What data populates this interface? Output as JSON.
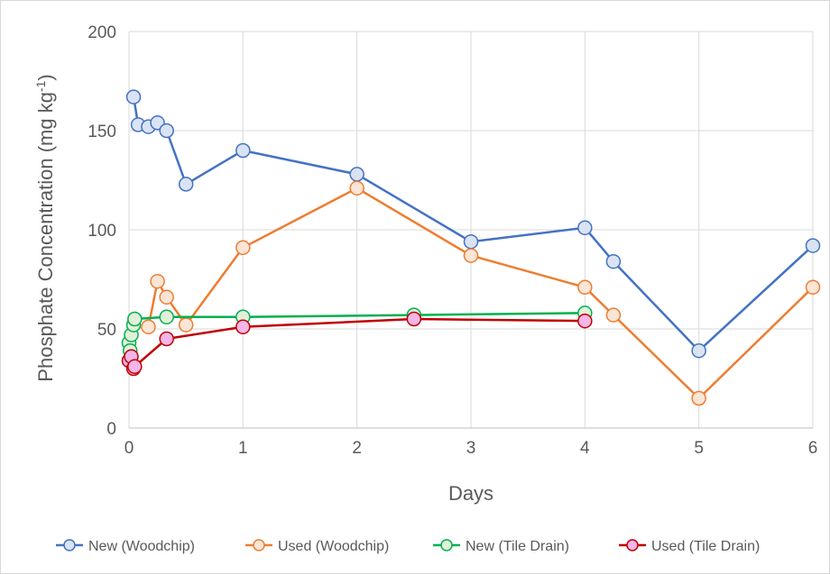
{
  "chart_data": {
    "type": "line",
    "title": "",
    "xlabel": "Days",
    "ylabel": "Phosphate  Concentration (mg kg-1)",
    "ylabel_parts": {
      "main": "Phosphate  Concentration (mg kg",
      "superscript": "-1",
      "close": ")"
    },
    "xlim": [
      0,
      6
    ],
    "ylim": [
      0,
      200
    ],
    "x_ticks": [
      "0",
      "1",
      "2",
      "3",
      "4",
      "5",
      "6"
    ],
    "y_ticks": [
      "0",
      "50",
      "100",
      "150",
      "200"
    ],
    "grid": true,
    "legend_position": "bottom",
    "series": [
      {
        "name": "New (Woodchip)",
        "color": "#4472c4",
        "marker_fill": "#dae3f3",
        "points": [
          [
            0.04,
            167
          ],
          [
            0.08,
            153
          ],
          [
            0.17,
            152
          ],
          [
            0.25,
            154
          ],
          [
            0.33,
            150
          ],
          [
            0.5,
            123
          ],
          [
            1,
            140
          ],
          [
            2,
            128
          ],
          [
            3,
            94
          ],
          [
            4,
            101
          ],
          [
            4.25,
            84
          ],
          [
            5,
            39
          ],
          [
            6,
            92
          ]
        ]
      },
      {
        "name": "Used (Woodchip)",
        "color": "#ed7d31",
        "marker_fill": "#fbe5d6",
        "points": [
          [
            0.17,
            51
          ],
          [
            0.25,
            74
          ],
          [
            0.33,
            66
          ],
          [
            0.5,
            52
          ],
          [
            1,
            91
          ],
          [
            2,
            121
          ],
          [
            3,
            87
          ],
          [
            4,
            71
          ],
          [
            4.25,
            57
          ],
          [
            5,
            15
          ],
          [
            6,
            71
          ]
        ]
      },
      {
        "name": "New (Tile Drain)",
        "color": "#00b050",
        "marker_fill": "#e2f0d9",
        "points": [
          [
            0,
            43
          ],
          [
            0.01,
            39
          ],
          [
            0.02,
            47
          ],
          [
            0.04,
            52
          ],
          [
            0.05,
            55
          ],
          [
            0.33,
            56
          ],
          [
            1,
            56
          ],
          [
            2.5,
            57
          ],
          [
            4,
            58
          ]
        ]
      },
      {
        "name": "Used (Tile Drain)",
        "color": "#c00000",
        "marker_fill": "#f4b6e8",
        "points": [
          [
            0,
            34
          ],
          [
            0.02,
            36
          ],
          [
            0.04,
            30
          ],
          [
            0.05,
            31
          ],
          [
            0.33,
            45
          ],
          [
            1,
            51
          ],
          [
            2.5,
            55
          ],
          [
            4,
            54
          ]
        ]
      }
    ]
  }
}
